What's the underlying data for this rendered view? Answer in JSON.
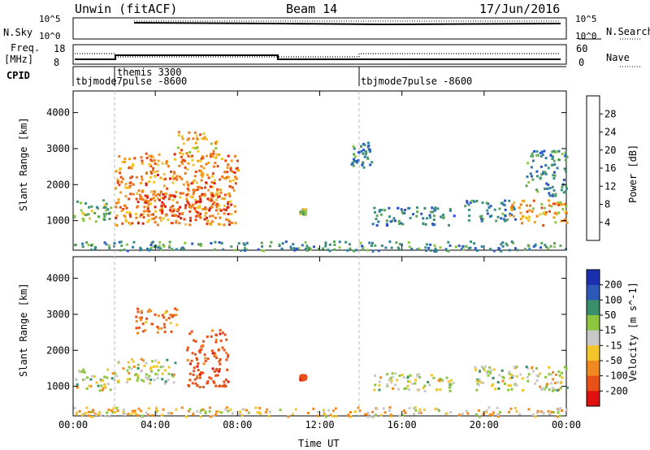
{
  "header": {
    "station": "Unwin (fitACF)",
    "beam": "Beam 14",
    "date": "17/Jun/2016"
  },
  "top_panels": {
    "nsky": {
      "label": "N.Sky",
      "ticks": [
        "10^5",
        "10^0"
      ],
      "right_ticks": [
        "10^5",
        "10^0"
      ],
      "right_label": "N.Search"
    },
    "freq": {
      "label_line1": "Freq.",
      "label_line2": "[MHz]",
      "ticks": [
        "18",
        "8"
      ],
      "right_ticks": [
        "60",
        "0"
      ],
      "right_label": "Nave"
    },
    "cpid": {
      "label": "CPID",
      "segments": [
        {
          "label": "tbjmode7pulse -8600",
          "start_hour": 0
        },
        {
          "label": "themis 3300",
          "start_hour": 2
        },
        {
          "label": "tbjmode7pulse -8600",
          "start_hour": 14
        }
      ]
    }
  },
  "chart_data": [
    {
      "type": "heatmap",
      "title": "",
      "xlabel": "",
      "ylabel": "Slant Range [km]",
      "xlim": [
        0,
        24
      ],
      "ylim": [
        180,
        4600
      ],
      "y_ticks": [
        "1000",
        "2000",
        "3000",
        "4000"
      ],
      "colorbar": {
        "label": "Power [dB]",
        "range": [
          0,
          32
        ],
        "ticks": [
          "4",
          "8",
          "12",
          "16",
          "20",
          "24",
          "28"
        ],
        "colors": [
          "#1f3ff0",
          "#2b55c8",
          "#2e7ba6",
          "#3f8f7c",
          "#59a35a",
          "#8cc63f",
          "#f2c52a",
          "#f0a020",
          "#ee7a18",
          "#e54a14",
          "#d81e10"
        ]
      },
      "patches": [
        {
          "x": [
            0,
            1.8
          ],
          "y": [
            950,
            1600
          ],
          "value": 14
        },
        {
          "x": [
            2,
            8
          ],
          "y": [
            900,
            2900
          ],
          "value": 24
        },
        {
          "x": [
            3,
            7.5
          ],
          "y": [
            1100,
            1800
          ],
          "value": 28
        },
        {
          "x": [
            5,
            7
          ],
          "y": [
            2800,
            3500
          ],
          "value": 22
        },
        {
          "x": [
            11,
            11.3
          ],
          "y": [
            1200,
            1350
          ],
          "value": 16
        },
        {
          "x": [
            13.5,
            14.5
          ],
          "y": [
            2500,
            3200
          ],
          "value": 9
        },
        {
          "x": [
            14.5,
            18.5
          ],
          "y": [
            900,
            1400
          ],
          "value": 8
        },
        {
          "x": [
            19,
            21.5
          ],
          "y": [
            1000,
            1600
          ],
          "value": 9
        },
        {
          "x": [
            21,
            24
          ],
          "y": [
            900,
            1600
          ],
          "value": 22
        },
        {
          "x": [
            22,
            24
          ],
          "y": [
            1700,
            3000
          ],
          "value": 10
        },
        {
          "x": [
            0,
            24
          ],
          "y": [
            180,
            450
          ],
          "value": 10
        }
      ]
    },
    {
      "type": "heatmap",
      "title": "",
      "xlabel": "Time UT",
      "ylabel": "Slant Range [km]",
      "xlim": [
        0,
        24
      ],
      "ylim": [
        180,
        4600
      ],
      "y_ticks": [
        "1000",
        "2000",
        "3000",
        "4000"
      ],
      "x_ticks": [
        "00:00",
        "04:00",
        "08:00",
        "12:00",
        "16:00",
        "20:00",
        "00:00"
      ],
      "colorbar": {
        "label": "Velocity [m s^-1]",
        "units_note": "",
        "ticks": [
          "200",
          "100",
          "50",
          "15",
          "-15",
          "-50",
          "-100",
          "-200"
        ],
        "colors": [
          "#1a2fb0",
          "#2e58b8",
          "#3a8f6a",
          "#8cc63f",
          "#c8c8c8",
          "#f2c52a",
          "#f08a20",
          "#e85018",
          "#e01010"
        ]
      },
      "patches": [
        {
          "x": [
            0,
            2
          ],
          "y": [
            900,
            1500
          ],
          "value": 0
        },
        {
          "x": [
            2,
            5
          ],
          "y": [
            1100,
            1800
          ],
          "value": 0
        },
        {
          "x": [
            5.5,
            7.5
          ],
          "y": [
            1000,
            2600
          ],
          "value": -150
        },
        {
          "x": [
            3,
            5
          ],
          "y": [
            2500,
            3200
          ],
          "value": -100
        },
        {
          "x": [
            11,
            11.3
          ],
          "y": [
            1200,
            1350
          ],
          "value": -150
        },
        {
          "x": [
            14.5,
            18.5
          ],
          "y": [
            900,
            1400
          ],
          "value": 0
        },
        {
          "x": [
            19.5,
            24
          ],
          "y": [
            900,
            1600
          ],
          "value": 0
        },
        {
          "x": [
            0,
            24
          ],
          "y": [
            180,
            450
          ],
          "value": -30
        }
      ]
    }
  ]
}
